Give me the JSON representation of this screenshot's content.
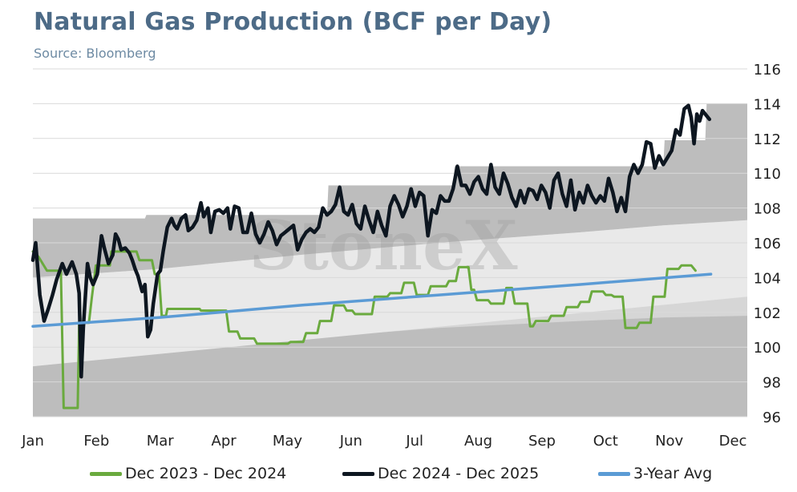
{
  "title": "Natural Gas Production (BCF per Day)",
  "subtitle": "Source: Bloomberg",
  "watermark": "StoneX",
  "colors": {
    "band_outer": "#bdbdbd",
    "band_mid": "#d6d6d6",
    "band_inner": "#e9e9e9",
    "series_2324": "#6aaa3e",
    "series_2425": "#0d1620",
    "series_avg": "#5b9bd5",
    "grid": "#d9d9d9"
  },
  "chart_data": {
    "type": "line",
    "title": "Natural Gas Production (BCF per Day)",
    "x_labels": [
      "Jan",
      "Feb",
      "Mar",
      "Apr",
      "May",
      "Jun",
      "Jul",
      "Aug",
      "Sep",
      "Oct",
      "Nov",
      "Dec"
    ],
    "x_range": [
      1,
      52
    ],
    "ylim": [
      96,
      116
    ],
    "y_ticks": [
      96,
      98,
      100,
      102,
      104,
      106,
      108,
      110,
      112,
      114,
      116
    ],
    "y_axis_side": "right",
    "grid": true,
    "legend_position": "bottom",
    "bands": {
      "max": [
        [
          1,
          107.4
        ],
        [
          6,
          107.4
        ],
        [
          9,
          107.4
        ],
        [
          9.1,
          107.6
        ],
        [
          22,
          107.6
        ],
        [
          22.1,
          109.3
        ],
        [
          31,
          109.3
        ],
        [
          31.1,
          110.4
        ],
        [
          46,
          110.4
        ],
        [
          46.1,
          111.9
        ],
        [
          49,
          111.9
        ],
        [
          49.1,
          114.0
        ],
        [
          52,
          114.0
        ]
      ],
      "upper": [
        [
          1,
          104.0
        ],
        [
          10,
          104.5
        ],
        [
          20,
          105.3
        ],
        [
          30,
          106.0
        ],
        [
          40,
          106.6
        ],
        [
          46,
          107.0
        ],
        [
          52,
          107.3
        ]
      ],
      "lower": [
        [
          1,
          98.9
        ],
        [
          10,
          99.7
        ],
        [
          20,
          100.5
        ],
        [
          30,
          101.1
        ],
        [
          40,
          101.5
        ],
        [
          46,
          101.7
        ],
        [
          52,
          101.8
        ]
      ],
      "min_inner": [
        [
          1,
          98.9
        ],
        [
          52,
          102.9
        ]
      ],
      "min": 96
    },
    "series": [
      {
        "name": "Dec 2023 - Dec 2024",
        "color": "#6aaa3e",
        "points": [
          [
            1,
            105.5
          ],
          [
            1.4,
            105.2
          ],
          [
            2,
            104.4
          ],
          [
            2.6,
            104.4
          ],
          [
            3,
            104.4
          ],
          [
            3.2,
            96.5
          ],
          [
            4.2,
            96.5
          ],
          [
            4.3,
            101.4
          ],
          [
            5,
            101.4
          ],
          [
            5.2,
            102.8
          ],
          [
            5.5,
            104.7
          ],
          [
            6.5,
            104.7
          ],
          [
            6.6,
            105.5
          ],
          [
            7,
            105.5
          ],
          [
            8.4,
            105.5
          ],
          [
            8.6,
            105.0
          ],
          [
            9.5,
            105.0
          ],
          [
            9.7,
            104.2
          ],
          [
            10,
            104.2
          ],
          [
            10.2,
            101.8
          ],
          [
            10.5,
            101.8
          ],
          [
            10.6,
            102.2
          ],
          [
            12.9,
            102.2
          ],
          [
            13,
            102.1
          ],
          [
            14.8,
            102.1
          ],
          [
            15,
            100.9
          ],
          [
            15.6,
            100.9
          ],
          [
            15.8,
            100.5
          ],
          [
            16.8,
            100.5
          ],
          [
            17,
            100.2
          ],
          [
            19.2,
            100.2
          ],
          [
            19.4,
            100.3
          ],
          [
            20.3,
            100.3
          ],
          [
            20.5,
            100.8
          ],
          [
            21.3,
            100.8
          ],
          [
            21.5,
            101.5
          ],
          [
            22.3,
            101.5
          ],
          [
            22.5,
            102.4
          ],
          [
            23.2,
            102.4
          ],
          [
            23.4,
            102.1
          ],
          [
            23.8,
            102.1
          ],
          [
            24,
            101.9
          ],
          [
            25.2,
            101.9
          ],
          [
            25.4,
            102.9
          ],
          [
            26.3,
            102.9
          ],
          [
            26.5,
            103.1
          ],
          [
            27.3,
            103.1
          ],
          [
            27.5,
            103.7
          ],
          [
            28.2,
            103.7
          ],
          [
            28.4,
            103.0
          ],
          [
            29.2,
            103.0
          ],
          [
            29.4,
            103.5
          ],
          [
            30.5,
            103.5
          ],
          [
            30.7,
            103.8
          ],
          [
            31.2,
            103.8
          ],
          [
            31.4,
            104.6
          ],
          [
            32.1,
            104.6
          ],
          [
            32.3,
            103.3
          ],
          [
            32.5,
            103.3
          ],
          [
            32.7,
            102.7
          ],
          [
            33.5,
            102.7
          ],
          [
            33.7,
            102.5
          ],
          [
            34.6,
            102.5
          ],
          [
            34.8,
            103.4
          ],
          [
            35.2,
            103.4
          ],
          [
            35.4,
            102.5
          ],
          [
            36.3,
            102.5
          ],
          [
            36.5,
            101.2
          ],
          [
            36.7,
            101.2
          ],
          [
            36.9,
            101.5
          ],
          [
            37.8,
            101.5
          ],
          [
            38,
            101.8
          ],
          [
            38.9,
            101.8
          ],
          [
            39.1,
            102.3
          ],
          [
            39.9,
            102.3
          ],
          [
            40.1,
            102.6
          ],
          [
            40.7,
            102.6
          ],
          [
            40.9,
            103.2
          ],
          [
            41.7,
            103.2
          ],
          [
            41.9,
            103.0
          ],
          [
            42.3,
            103.0
          ],
          [
            42.5,
            102.9
          ],
          [
            43.1,
            102.9
          ],
          [
            43.3,
            101.1
          ],
          [
            44.1,
            101.1
          ],
          [
            44.3,
            101.4
          ],
          [
            45.1,
            101.4
          ],
          [
            45.3,
            102.9
          ],
          [
            46.1,
            102.9
          ],
          [
            46.3,
            104.5
          ],
          [
            47.1,
            104.5
          ],
          [
            47.3,
            104.7
          ],
          [
            48,
            104.7
          ],
          [
            48.3,
            104.4
          ]
        ]
      },
      {
        "name": "Dec 2024 - Dec 2025",
        "color": "#0d1620",
        "points": [
          [
            1,
            105.0
          ],
          [
            1.2,
            106.0
          ],
          [
            1.5,
            103.0
          ],
          [
            1.8,
            101.5
          ],
          [
            2.1,
            102.2
          ],
          [
            2.4,
            103.0
          ],
          [
            2.7,
            103.9
          ],
          [
            3.1,
            104.8
          ],
          [
            3.4,
            104.2
          ],
          [
            3.8,
            104.9
          ],
          [
            4.1,
            104.2
          ],
          [
            4.3,
            103.1
          ],
          [
            4.45,
            98.3
          ],
          [
            4.6,
            101.1
          ],
          [
            4.9,
            104.8
          ],
          [
            5.1,
            104.0
          ],
          [
            5.3,
            103.6
          ],
          [
            5.6,
            104.2
          ],
          [
            5.9,
            106.4
          ],
          [
            6.1,
            105.7
          ],
          [
            6.4,
            104.8
          ],
          [
            6.7,
            105.3
          ],
          [
            6.9,
            106.5
          ],
          [
            7.1,
            106.2
          ],
          [
            7.3,
            105.6
          ],
          [
            7.6,
            105.7
          ],
          [
            7.9,
            105.4
          ],
          [
            8.1,
            105.0
          ],
          [
            8.3,
            104.5
          ],
          [
            8.5,
            104.1
          ],
          [
            8.8,
            103.2
          ],
          [
            9.0,
            103.6
          ],
          [
            9.2,
            100.6
          ],
          [
            9.4,
            101.0
          ],
          [
            9.6,
            102.5
          ],
          [
            9.9,
            104.2
          ],
          [
            10.1,
            104.4
          ],
          [
            10.3,
            105.5
          ],
          [
            10.6,
            106.9
          ],
          [
            10.9,
            107.4
          ],
          [
            11.1,
            107.0
          ],
          [
            11.3,
            106.8
          ],
          [
            11.6,
            107.4
          ],
          [
            11.9,
            107.6
          ],
          [
            12.1,
            106.7
          ],
          [
            12.4,
            106.9
          ],
          [
            12.7,
            107.3
          ],
          [
            13.0,
            108.3
          ],
          [
            13.2,
            107.5
          ],
          [
            13.5,
            108.0
          ],
          [
            13.7,
            106.6
          ],
          [
            14.0,
            107.8
          ],
          [
            14.3,
            107.9
          ],
          [
            14.6,
            107.7
          ],
          [
            14.9,
            108.0
          ],
          [
            15.1,
            106.8
          ],
          [
            15.4,
            108.1
          ],
          [
            15.7,
            108.0
          ],
          [
            16.0,
            106.6
          ],
          [
            16.3,
            106.6
          ],
          [
            16.6,
            107.7
          ],
          [
            16.9,
            106.5
          ],
          [
            17.2,
            106.0
          ],
          [
            17.5,
            106.5
          ],
          [
            17.8,
            107.2
          ],
          [
            18.1,
            106.7
          ],
          [
            18.4,
            105.9
          ],
          [
            18.7,
            106.4
          ],
          [
            19.0,
            106.6
          ],
          [
            19.3,
            106.8
          ],
          [
            19.6,
            107.0
          ],
          [
            19.9,
            105.6
          ],
          [
            20.2,
            106.2
          ],
          [
            20.5,
            106.6
          ],
          [
            20.8,
            106.8
          ],
          [
            21.1,
            106.6
          ],
          [
            21.4,
            106.9
          ],
          [
            21.7,
            108.0
          ],
          [
            22.0,
            107.6
          ],
          [
            22.3,
            107.8
          ],
          [
            22.6,
            108.2
          ],
          [
            22.9,
            109.2
          ],
          [
            23.2,
            107.8
          ],
          [
            23.5,
            107.6
          ],
          [
            23.8,
            108.2
          ],
          [
            24.1,
            107.1
          ],
          [
            24.4,
            106.8
          ],
          [
            24.7,
            108.1
          ],
          [
            25.0,
            107.3
          ],
          [
            25.3,
            106.6
          ],
          [
            25.6,
            107.8
          ],
          [
            25.9,
            107.0
          ],
          [
            26.2,
            106.4
          ],
          [
            26.5,
            108.1
          ],
          [
            26.8,
            108.7
          ],
          [
            27.1,
            108.2
          ],
          [
            27.4,
            107.5
          ],
          [
            27.7,
            108.1
          ],
          [
            28.0,
            109.1
          ],
          [
            28.3,
            108.1
          ],
          [
            28.6,
            108.9
          ],
          [
            28.9,
            108.7
          ],
          [
            29.2,
            106.4
          ],
          [
            29.5,
            107.9
          ],
          [
            29.8,
            107.7
          ],
          [
            30.1,
            108.7
          ],
          [
            30.4,
            108.4
          ],
          [
            30.7,
            108.4
          ],
          [
            31.0,
            109.1
          ],
          [
            31.3,
            110.4
          ],
          [
            31.6,
            109.3
          ],
          [
            31.9,
            109.3
          ],
          [
            32.2,
            108.8
          ],
          [
            32.5,
            109.5
          ],
          [
            32.8,
            109.8
          ],
          [
            33.1,
            109.1
          ],
          [
            33.4,
            108.8
          ],
          [
            33.7,
            110.5
          ],
          [
            34.0,
            109.2
          ],
          [
            34.3,
            108.8
          ],
          [
            34.6,
            110.0
          ],
          [
            34.9,
            109.4
          ],
          [
            35.2,
            108.6
          ],
          [
            35.5,
            108.1
          ],
          [
            35.8,
            109.0
          ],
          [
            36.1,
            108.3
          ],
          [
            36.4,
            109.1
          ],
          [
            36.7,
            109.0
          ],
          [
            37.0,
            108.5
          ],
          [
            37.3,
            109.3
          ],
          [
            37.6,
            108.9
          ],
          [
            37.9,
            108.0
          ],
          [
            38.2,
            109.6
          ],
          [
            38.5,
            110.0
          ],
          [
            38.8,
            108.8
          ],
          [
            39.1,
            108.1
          ],
          [
            39.4,
            109.6
          ],
          [
            39.7,
            107.9
          ],
          [
            40.0,
            108.9
          ],
          [
            40.3,
            108.3
          ],
          [
            40.6,
            109.3
          ],
          [
            40.9,
            108.7
          ],
          [
            41.2,
            108.3
          ],
          [
            41.5,
            108.7
          ],
          [
            41.8,
            108.4
          ],
          [
            42.1,
            109.7
          ],
          [
            42.4,
            108.9
          ],
          [
            42.7,
            107.8
          ],
          [
            43.0,
            108.6
          ],
          [
            43.3,
            107.8
          ],
          [
            43.6,
            109.8
          ],
          [
            43.9,
            110.5
          ],
          [
            44.2,
            110.0
          ],
          [
            44.5,
            110.5
          ],
          [
            44.8,
            111.8
          ],
          [
            45.1,
            111.7
          ],
          [
            45.4,
            110.3
          ],
          [
            45.7,
            111.0
          ],
          [
            46.0,
            110.5
          ],
          [
            46.3,
            110.9
          ],
          [
            46.6,
            111.3
          ],
          [
            46.9,
            112.5
          ],
          [
            47.2,
            112.2
          ],
          [
            47.5,
            113.7
          ],
          [
            47.8,
            113.9
          ],
          [
            48.0,
            113.2
          ],
          [
            48.2,
            111.7
          ],
          [
            48.4,
            113.4
          ],
          [
            48.6,
            113.0
          ],
          [
            48.8,
            113.6
          ],
          [
            49.0,
            113.4
          ],
          [
            49.3,
            113.1
          ]
        ]
      },
      {
        "name": "3-Year Avg",
        "color": "#5b9bd5",
        "points": [
          [
            1,
            101.2
          ],
          [
            10,
            101.7
          ],
          [
            20,
            102.4
          ],
          [
            30,
            103.0
          ],
          [
            40,
            103.6
          ],
          [
            49.4,
            104.2
          ]
        ]
      }
    ]
  }
}
